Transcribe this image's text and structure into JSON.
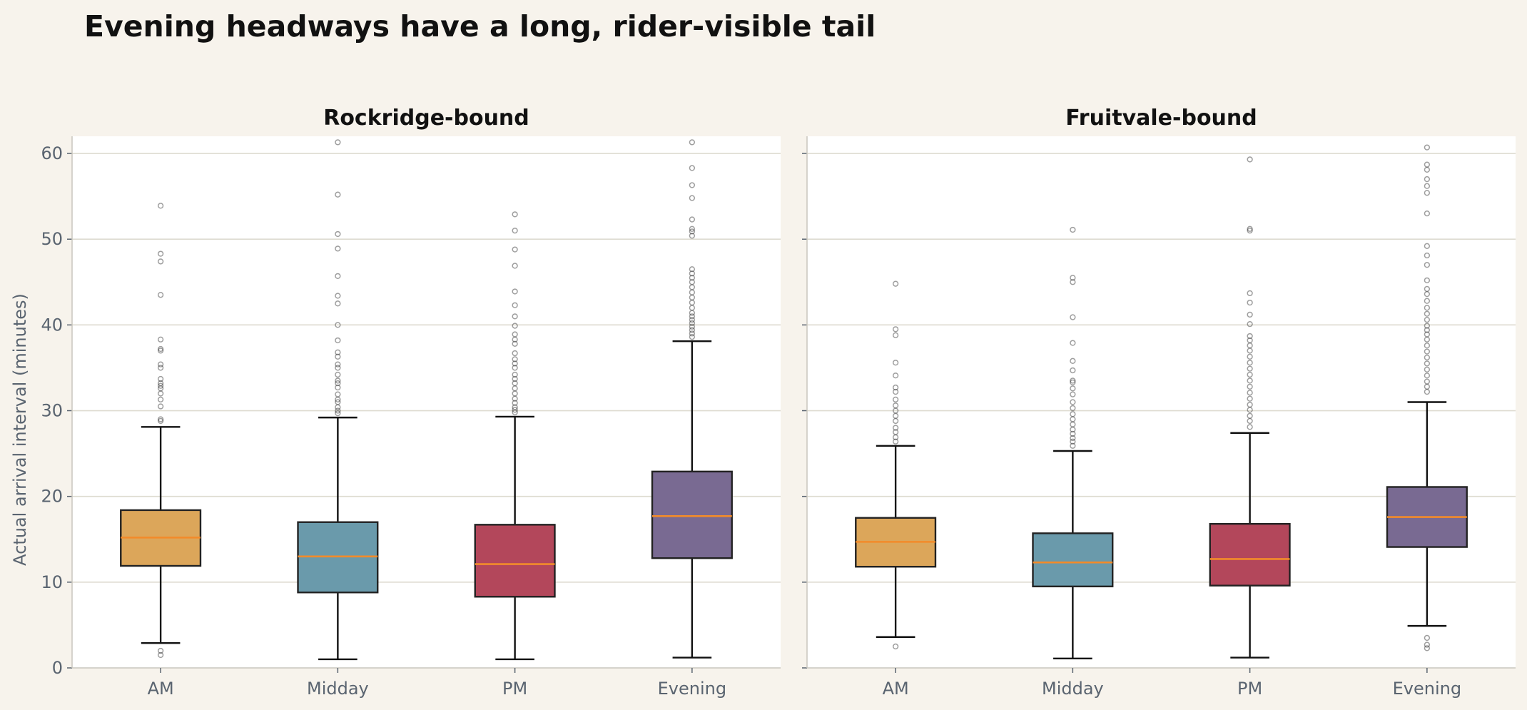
{
  "chart_data": {
    "type": "box",
    "title": "Evening headways have a long, rider-visible tail",
    "ylabel": "Actual arrival interval (minutes)",
    "ylim": [
      0,
      62
    ],
    "yticks": [
      0,
      10,
      20,
      30,
      40,
      50,
      60
    ],
    "grid": "horizontal",
    "categories": [
      "AM",
      "Midday",
      "PM",
      "Evening"
    ],
    "colors": {
      "AM": "#dca65a",
      "Midday": "#6a9aab",
      "PM": "#b3475b",
      "Evening": "#796a92",
      "median": "#f28b2a"
    },
    "panels": [
      {
        "name": "Rockridge-bound",
        "boxes": [
          {
            "category": "AM",
            "whisker_low": 2.9,
            "q1": 11.9,
            "median": 15.2,
            "q3": 18.4,
            "whisker_high": 28.1,
            "outliers": [
              1.5,
              2.0,
              28.8,
              29.0,
              30.5,
              31.3,
              32.0,
              32.6,
              32.9,
              33.2,
              33.7,
              35.0,
              35.4,
              37.0,
              37.2,
              38.3,
              43.5,
              47.4,
              48.3,
              53.9
            ]
          },
          {
            "category": "Midday",
            "whisker_low": 1.0,
            "q1": 8.8,
            "median": 13.0,
            "q3": 17.0,
            "whisker_high": 29.2,
            "outliers": [
              29.7,
              30.0,
              30.4,
              31.0,
              31.3,
              31.9,
              32.7,
              33.2,
              33.5,
              34.2,
              35.0,
              35.4,
              36.3,
              36.8,
              38.2,
              40.0,
              42.5,
              43.4,
              45.7,
              48.9,
              50.6,
              55.2,
              61.3
            ]
          },
          {
            "category": "PM",
            "whisker_low": 1.0,
            "q1": 8.3,
            "median": 12.1,
            "q3": 16.7,
            "whisker_high": 29.3,
            "outliers": [
              29.8,
              30.1,
              30.4,
              30.9,
              31.4,
              32.0,
              32.6,
              33.2,
              33.7,
              34.2,
              35.0,
              35.5,
              36.0,
              36.7,
              37.8,
              38.3,
              38.9,
              39.9,
              41.0,
              42.3,
              43.9,
              46.9,
              48.8,
              51.0,
              52.9
            ]
          },
          {
            "category": "Evening",
            "whisker_low": 1.2,
            "q1": 12.8,
            "median": 17.7,
            "q3": 22.9,
            "whisker_high": 38.1,
            "outliers": [
              38.6,
              39.0,
              39.4,
              39.8,
              40.2,
              40.6,
              41.0,
              41.4,
              42.0,
              42.6,
              43.2,
              43.8,
              44.4,
              45.0,
              45.5,
              46.0,
              46.5,
              50.4,
              50.9,
              51.2,
              52.3,
              54.8,
              56.3,
              58.3,
              61.3
            ]
          }
        ]
      },
      {
        "name": "Fruitvale-bound",
        "boxes": [
          {
            "category": "AM",
            "whisker_low": 3.6,
            "q1": 11.8,
            "median": 14.7,
            "q3": 17.5,
            "whisker_high": 25.9,
            "outliers": [
              2.5,
              26.4,
              26.9,
              27.5,
              28.0,
              28.8,
              29.4,
              30.0,
              30.6,
              31.3,
              32.2,
              32.7,
              34.1,
              35.6,
              38.8,
              39.5,
              44.8
            ]
          },
          {
            "category": "Midday",
            "whisker_low": 1.1,
            "q1": 9.5,
            "median": 12.3,
            "q3": 15.7,
            "whisker_high": 25.3,
            "outliers": [
              25.9,
              26.4,
              26.8,
              27.3,
              27.8,
              28.4,
              29.0,
              29.6,
              30.3,
              31.0,
              31.9,
              32.6,
              33.3,
              33.5,
              34.7,
              35.8,
              37.9,
              40.9,
              45.0,
              45.5,
              51.1
            ]
          },
          {
            "category": "PM",
            "whisker_low": 1.2,
            "q1": 9.6,
            "median": 12.7,
            "q3": 16.8,
            "whisker_high": 27.4,
            "outliers": [
              28.1,
              28.8,
              29.4,
              30.1,
              30.7,
              31.4,
              32.1,
              32.8,
              33.5,
              34.2,
              34.9,
              35.6,
              36.3,
              37.0,
              37.6,
              38.2,
              38.7,
              40.1,
              41.2,
              42.6,
              43.7,
              51.0,
              51.2,
              59.3
            ]
          },
          {
            "category": "Evening",
            "whisker_low": 4.9,
            "q1": 14.1,
            "median": 17.6,
            "q3": 21.1,
            "whisker_high": 31.0,
            "outliers": [
              2.3,
              2.7,
              3.5,
              32.2,
              32.8,
              33.4,
              34.1,
              34.8,
              35.5,
              36.2,
              36.9,
              37.6,
              38.3,
              38.9,
              39.4,
              39.9,
              40.6,
              41.3,
              42.0,
              42.8,
              43.6,
              44.2,
              45.2,
              47.0,
              48.1,
              49.2,
              53.0,
              55.4,
              56.2,
              57.0,
              58.1,
              58.7,
              60.7
            ]
          }
        ]
      }
    ]
  }
}
